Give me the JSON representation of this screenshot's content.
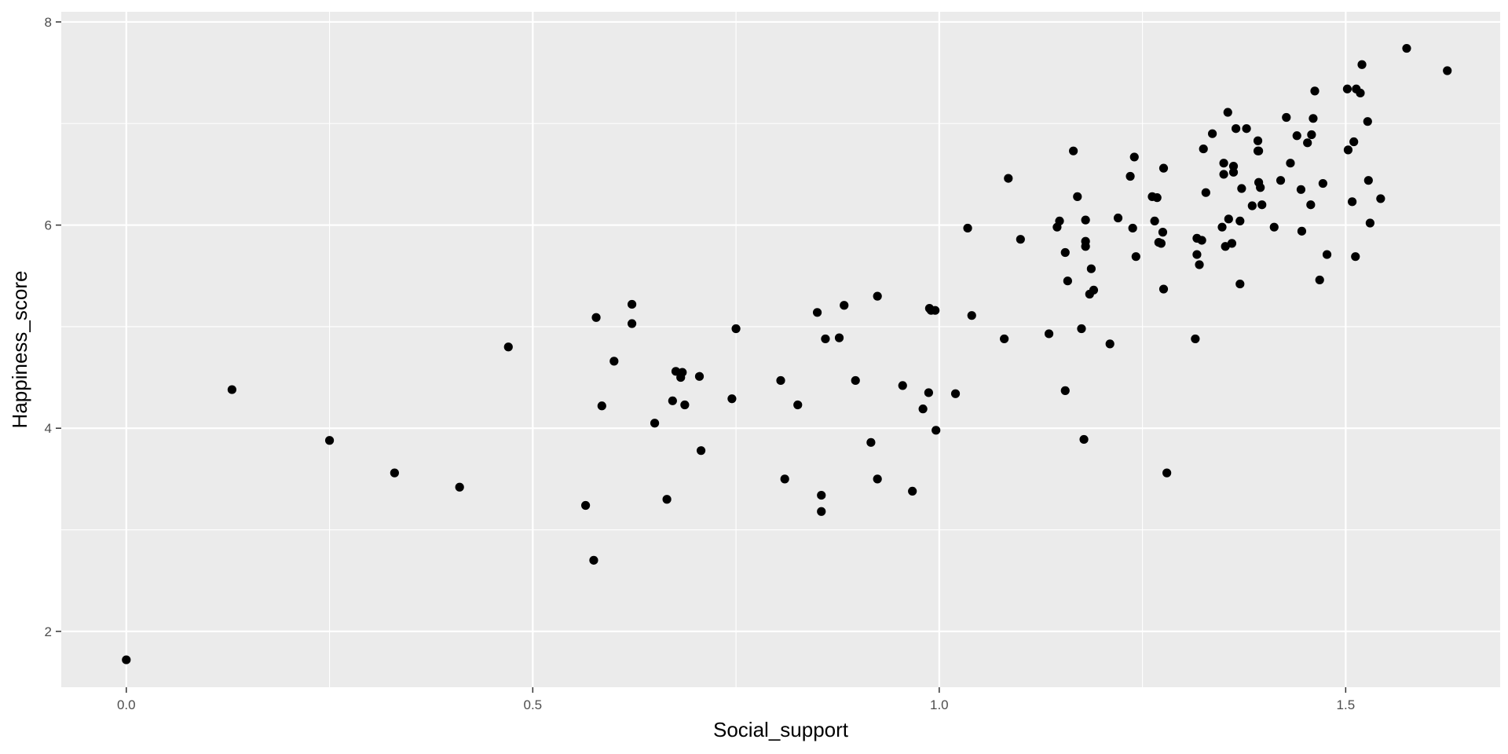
{
  "chart_data": {
    "type": "scatter",
    "xlabel": "Social_support",
    "ylabel": "Happiness_score",
    "xlim": [
      -0.08,
      1.69
    ],
    "ylim": [
      1.45,
      8.1
    ],
    "x_ticks": [
      0.0,
      0.5,
      1.0,
      1.5
    ],
    "x_tick_labels": [
      "0.0",
      "0.5",
      "1.0",
      "1.5"
    ],
    "y_ticks": [
      2,
      4,
      6,
      8
    ],
    "y_tick_labels": [
      "2",
      "4",
      "6",
      "8"
    ],
    "grid": true,
    "panel_background": "#ebebeb",
    "grid_color": "#ffffff",
    "point_color": "#000000",
    "points": [
      [
        0.0,
        1.72
      ],
      [
        0.13,
        4.38
      ],
      [
        0.25,
        3.88
      ],
      [
        0.33,
        3.56
      ],
      [
        0.41,
        3.42
      ],
      [
        0.47,
        4.8
      ],
      [
        0.565,
        3.24
      ],
      [
        0.575,
        2.7
      ],
      [
        0.578,
        5.09
      ],
      [
        0.585,
        4.22
      ],
      [
        0.6,
        4.66
      ],
      [
        0.622,
        5.22
      ],
      [
        0.622,
        5.03
      ],
      [
        0.65,
        4.05
      ],
      [
        0.665,
        3.3
      ],
      [
        0.672,
        4.27
      ],
      [
        0.676,
        4.56
      ],
      [
        0.682,
        4.5
      ],
      [
        0.684,
        4.55
      ],
      [
        0.687,
        4.23
      ],
      [
        0.705,
        4.51
      ],
      [
        0.707,
        3.78
      ],
      [
        0.745,
        4.29
      ],
      [
        0.75,
        4.98
      ],
      [
        0.805,
        4.47
      ],
      [
        0.81,
        3.5
      ],
      [
        0.85,
        5.14
      ],
      [
        0.855,
        3.34
      ],
      [
        0.855,
        3.18
      ],
      [
        0.826,
        4.23
      ],
      [
        0.86,
        4.88
      ],
      [
        0.877,
        4.89
      ],
      [
        0.883,
        5.21
      ],
      [
        0.897,
        4.47
      ],
      [
        0.916,
        3.86
      ],
      [
        0.924,
        3.5
      ],
      [
        0.924,
        5.3
      ],
      [
        0.955,
        4.42
      ],
      [
        0.967,
        3.38
      ],
      [
        0.98,
        4.19
      ],
      [
        0.987,
        4.35
      ],
      [
        0.988,
        5.18
      ],
      [
        0.99,
        5.16
      ],
      [
        0.995,
        5.16
      ],
      [
        0.996,
        3.98
      ],
      [
        1.02,
        4.34
      ],
      [
        1.035,
        5.97
      ],
      [
        1.04,
        5.11
      ],
      [
        1.08,
        4.88
      ],
      [
        1.085,
        6.46
      ],
      [
        1.1,
        5.86
      ],
      [
        1.135,
        4.93
      ],
      [
        1.145,
        5.98
      ],
      [
        1.148,
        6.04
      ],
      [
        1.155,
        5.73
      ],
      [
        1.155,
        4.37
      ],
      [
        1.158,
        5.45
      ],
      [
        1.165,
        6.73
      ],
      [
        1.17,
        6.28
      ],
      [
        1.175,
        4.98
      ],
      [
        1.178,
        3.89
      ],
      [
        1.18,
        5.84
      ],
      [
        1.18,
        5.79
      ],
      [
        1.18,
        6.05
      ],
      [
        1.185,
        5.32
      ],
      [
        1.187,
        5.57
      ],
      [
        1.19,
        5.36
      ],
      [
        1.21,
        4.83
      ],
      [
        1.22,
        6.07
      ],
      [
        1.235,
        6.48
      ],
      [
        1.238,
        5.97
      ],
      [
        1.24,
        6.67
      ],
      [
        1.242,
        5.69
      ],
      [
        1.262,
        6.28
      ],
      [
        1.265,
        6.04
      ],
      [
        1.268,
        6.27
      ],
      [
        1.27,
        5.83
      ],
      [
        1.273,
        5.82
      ],
      [
        1.275,
        5.93
      ],
      [
        1.276,
        6.56
      ],
      [
        1.276,
        5.37
      ],
      [
        1.28,
        3.56
      ],
      [
        1.315,
        4.88
      ],
      [
        1.317,
        5.87
      ],
      [
        1.317,
        5.71
      ],
      [
        1.32,
        5.61
      ],
      [
        1.323,
        5.85
      ],
      [
        1.325,
        6.75
      ],
      [
        1.328,
        6.32
      ],
      [
        1.336,
        6.9
      ],
      [
        1.348,
        5.98
      ],
      [
        1.35,
        6.5
      ],
      [
        1.35,
        6.61
      ],
      [
        1.352,
        5.79
      ],
      [
        1.355,
        7.11
      ],
      [
        1.356,
        6.06
      ],
      [
        1.36,
        5.82
      ],
      [
        1.362,
        6.58
      ],
      [
        1.362,
        6.52
      ],
      [
        1.365,
        6.95
      ],
      [
        1.37,
        6.04
      ],
      [
        1.37,
        5.42
      ],
      [
        1.372,
        6.36
      ],
      [
        1.378,
        6.95
      ],
      [
        1.385,
        6.19
      ],
      [
        1.392,
        6.83
      ],
      [
        1.392,
        6.73
      ],
      [
        1.393,
        6.42
      ],
      [
        1.393,
        6.73
      ],
      [
        1.395,
        6.37
      ],
      [
        1.397,
        6.2
      ],
      [
        1.412,
        5.98
      ],
      [
        1.42,
        6.44
      ],
      [
        1.427,
        7.06
      ],
      [
        1.432,
        6.61
      ],
      [
        1.44,
        6.88
      ],
      [
        1.445,
        6.35
      ],
      [
        1.446,
        5.94
      ],
      [
        1.453,
        6.81
      ],
      [
        1.457,
        6.2
      ],
      [
        1.458,
        6.89
      ],
      [
        1.46,
        7.05
      ],
      [
        1.462,
        7.32
      ],
      [
        1.468,
        5.46
      ],
      [
        1.472,
        6.41
      ],
      [
        1.477,
        5.71
      ],
      [
        1.502,
        7.34
      ],
      [
        1.503,
        6.74
      ],
      [
        1.508,
        6.23
      ],
      [
        1.51,
        6.82
      ],
      [
        1.512,
        5.69
      ],
      [
        1.513,
        7.34
      ],
      [
        1.518,
        7.3
      ],
      [
        1.52,
        7.58
      ],
      [
        1.527,
        7.02
      ],
      [
        1.528,
        6.44
      ],
      [
        1.53,
        6.02
      ],
      [
        1.543,
        6.26
      ],
      [
        1.575,
        7.74
      ],
      [
        1.625,
        7.52
      ]
    ]
  }
}
